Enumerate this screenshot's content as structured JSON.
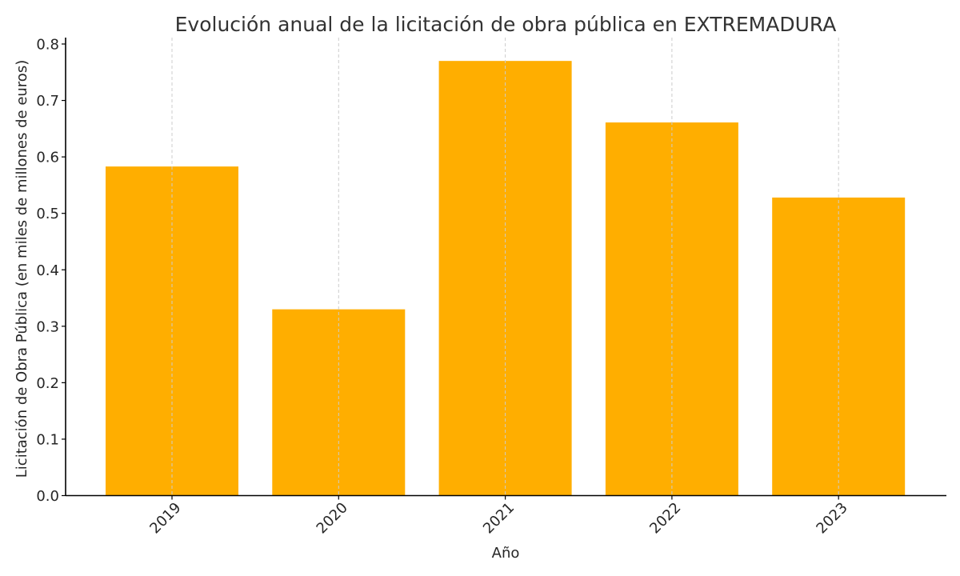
{
  "chart_data": {
    "type": "bar",
    "title": "Evolución anual de la licitación de obra pública en EXTREMADURA",
    "xlabel": "Año",
    "ylabel": "Licitación de Obra Pública (en miles de millones de euros)",
    "categories": [
      "2019",
      "2020",
      "2021",
      "2022",
      "2023"
    ],
    "values": [
      0.583,
      0.33,
      0.77,
      0.661,
      0.528
    ],
    "ylim": [
      0,
      0.8
    ],
    "yticks": [
      "0.0",
      "0.1",
      "0.2",
      "0.3",
      "0.4",
      "0.5",
      "0.6",
      "0.7",
      "0.8"
    ],
    "ytick_values": [
      0,
      0.1,
      0.2,
      0.3,
      0.4,
      0.5,
      0.6,
      0.7,
      0.8
    ],
    "grid": "x-dashed",
    "bar_color": "#FFAE00",
    "grid_color": "#cccccc",
    "axis_color": "#000000"
  }
}
